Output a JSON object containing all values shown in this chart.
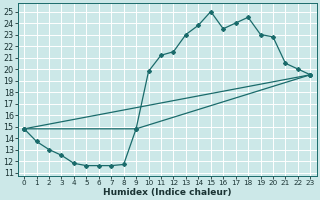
{
  "xlabel": "Humidex (Indice chaleur)",
  "bg_color": "#cce8e8",
  "grid_color": "#ffffff",
  "line_color": "#1a6b6b",
  "xlim": [
    -0.5,
    23.5
  ],
  "ylim": [
    10.7,
    25.7
  ],
  "xticks": [
    0,
    1,
    2,
    3,
    4,
    5,
    6,
    7,
    8,
    9,
    10,
    11,
    12,
    13,
    14,
    15,
    16,
    17,
    18,
    19,
    20,
    21,
    22,
    23
  ],
  "yticks": [
    11,
    12,
    13,
    14,
    15,
    16,
    17,
    18,
    19,
    20,
    21,
    22,
    23,
    24,
    25
  ],
  "line1_x": [
    0,
    1,
    2,
    3,
    4,
    5,
    6,
    7,
    8,
    9,
    10,
    11,
    12,
    13,
    14,
    15,
    16,
    17,
    18,
    19,
    20,
    21,
    22,
    23
  ],
  "line1_y": [
    14.8,
    13.7,
    13.0,
    12.5,
    11.8,
    11.6,
    11.6,
    11.6,
    11.7,
    14.8,
    19.8,
    21.2,
    21.5,
    23.0,
    23.8,
    25.0,
    23.5,
    24.0,
    24.5,
    23.0,
    22.8,
    20.5,
    20.0,
    19.5
  ],
  "line2_x": [
    0,
    23
  ],
  "line2_y": [
    14.8,
    19.5
  ],
  "line3_x": [
    0,
    9,
    23
  ],
  "line3_y": [
    14.8,
    14.8,
    19.5
  ]
}
